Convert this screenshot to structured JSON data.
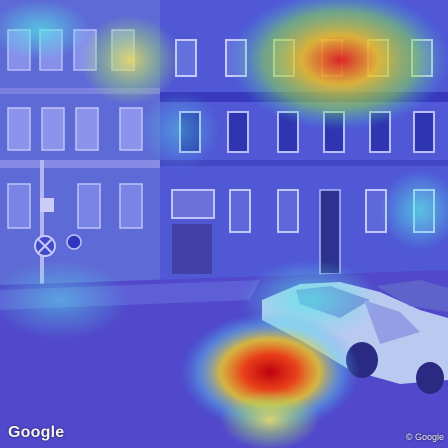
{
  "image": {
    "description_kind": "street-view photo with attention heatmap overlay",
    "watermark_left": "Google",
    "watermark_right": "© Google"
  },
  "colors": {
    "heat_low": "#2a2ad8",
    "heat_mid": "#38c8e0",
    "heat_high": "#f7d020",
    "heat_peak": "#d01818",
    "facade": "#7f82d8",
    "street": "#5a4fc8",
    "car": "#d8ecf4"
  }
}
